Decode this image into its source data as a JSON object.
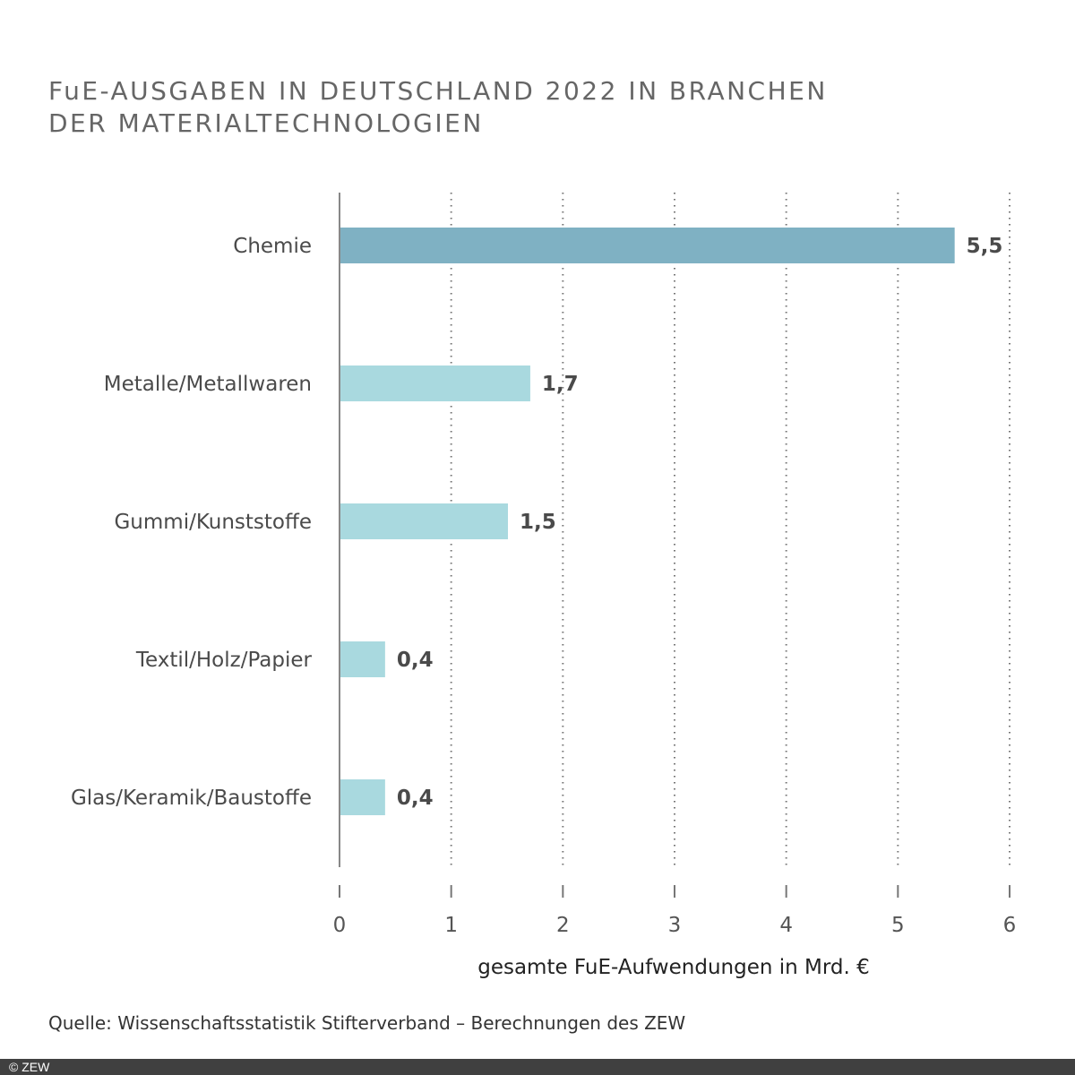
{
  "chart_data": {
    "type": "bar",
    "orientation": "horizontal",
    "title_lines": [
      "FuE-AUSGABEN IN DEUTSCHLAND 2022 IN BRANCHEN",
      "DER MATERIALTECHNOLOGIEN"
    ],
    "categories": [
      "Chemie",
      "Metalle/Metallwaren",
      "Gummi/Kunststoffe",
      "Textil/Holz/Papier",
      "Glas/Keramik/Baustoffe"
    ],
    "values": [
      5.5,
      1.7,
      1.5,
      0.4,
      0.4
    ],
    "value_labels": [
      "5,5",
      "1,7",
      "1,5",
      "0,4",
      "0,4"
    ],
    "bar_colors": [
      "#7fb1c3",
      "#a9d9df",
      "#a9d9df",
      "#a9d9df",
      "#a9d9df"
    ],
    "xlabel": "gesamte FuE-Aufwendungen in Mrd. €",
    "ylabel": "",
    "xlim": [
      0,
      6
    ],
    "xticks": [
      0,
      1,
      2,
      3,
      4,
      5,
      6
    ],
    "xtick_labels": [
      "0",
      "1",
      "2",
      "3",
      "4",
      "5",
      "6"
    ],
    "grid": "vertical dotted"
  },
  "source": "Quelle: Wissenschaftsstatistik Stifterverband  – Berechnungen des ZEW",
  "footer": "© ZEW"
}
